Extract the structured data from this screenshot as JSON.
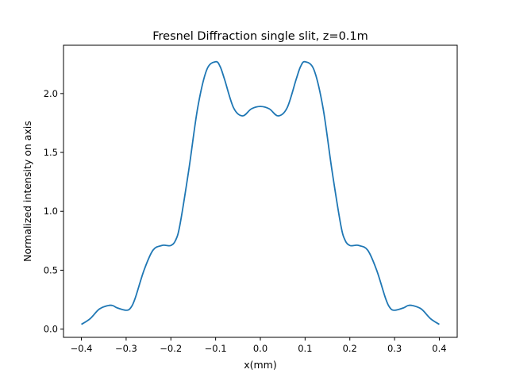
{
  "chart_data": {
    "type": "line",
    "title": "Fresnel Diffraction single slit, z=0.1m",
    "xlabel": "x(mm)",
    "ylabel": "Normalized intensity on axis",
    "xlim": [
      -0.44,
      0.44
    ],
    "ylim": [
      -0.07,
      2.41
    ],
    "xticks": [
      -0.4,
      -0.3,
      -0.2,
      -0.1,
      0.0,
      0.1,
      0.2,
      0.3,
      0.4
    ],
    "xtick_labels": [
      "−0.4",
      "−0.3",
      "−0.2",
      "−0.1",
      "0.0",
      "0.1",
      "0.2",
      "0.3",
      "0.4"
    ],
    "yticks": [
      0.0,
      0.5,
      1.0,
      1.5,
      2.0
    ],
    "ytick_labels": [
      "0.0",
      "0.5",
      "1.0",
      "1.5",
      "2.0"
    ],
    "grid": false,
    "series": [
      {
        "color": "#1f77b4",
        "x": [
          -0.4,
          -0.38,
          -0.36,
          -0.34,
          -0.33,
          -0.32,
          -0.3,
          -0.29,
          -0.28,
          -0.26,
          -0.24,
          -0.22,
          -0.21,
          -0.2,
          -0.19,
          -0.18,
          -0.16,
          -0.14,
          -0.12,
          -0.1,
          -0.09,
          -0.08,
          -0.06,
          -0.04,
          -0.02,
          0.0,
          0.02,
          0.04,
          0.06,
          0.08,
          0.09,
          0.1,
          0.12,
          0.14,
          0.16,
          0.18,
          0.19,
          0.2,
          0.21,
          0.22,
          0.24,
          0.26,
          0.28,
          0.29,
          0.3,
          0.32,
          0.33,
          0.34,
          0.36,
          0.38,
          0.4
        ],
        "y": [
          0.04,
          0.09,
          0.17,
          0.2,
          0.2,
          0.18,
          0.16,
          0.18,
          0.26,
          0.5,
          0.67,
          0.71,
          0.71,
          0.71,
          0.75,
          0.88,
          1.35,
          1.88,
          2.2,
          2.27,
          2.23,
          2.12,
          1.88,
          1.81,
          1.87,
          1.89,
          1.87,
          1.81,
          1.88,
          2.12,
          2.23,
          2.27,
          2.2,
          1.88,
          1.35,
          0.88,
          0.75,
          0.71,
          0.71,
          0.71,
          0.67,
          0.5,
          0.26,
          0.18,
          0.16,
          0.18,
          0.2,
          0.2,
          0.17,
          0.09,
          0.04
        ]
      }
    ]
  }
}
